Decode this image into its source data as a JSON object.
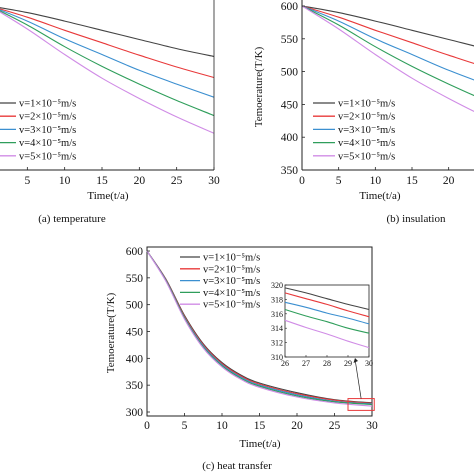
{
  "chart_data": [
    {
      "type": "line",
      "caption": "(a) temperature",
      "xlabel": "Time(t/a)",
      "ylabel": "",
      "xticks": [
        "5",
        "10",
        "15",
        "20",
        "25",
        "30"
      ],
      "yticks": [],
      "xlim": [
        0,
        30
      ],
      "ylim": [
        350,
        600
      ],
      "legend_position": "left",
      "x": [
        0,
        5,
        10,
        15,
        20,
        25,
        30
      ],
      "series": [
        {
          "name": "v=1×10⁻⁵m/s",
          "color": "#444444",
          "values": [
            600,
            590,
            577,
            563,
            549,
            535,
            523
          ]
        },
        {
          "name": "v=2×10⁻⁵m/s",
          "color": "#e8393a",
          "values": [
            600,
            583,
            563,
            544,
            525,
            507,
            491
          ]
        },
        {
          "name": "v=3×10⁻⁵m/s",
          "color": "#3b8fd0",
          "values": [
            600,
            577,
            550,
            526,
            502,
            481,
            461
          ]
        },
        {
          "name": "v=4×10⁻⁵m/s",
          "color": "#2f9e5b",
          "values": [
            600,
            571,
            538,
            508,
            481,
            456,
            433
          ]
        },
        {
          "name": "v=5×10⁻⁵m/s",
          "color": "#d08ce6",
          "values": [
            600,
            565,
            526,
            490,
            459,
            431,
            406
          ]
        }
      ]
    },
    {
      "type": "line",
      "caption": "(b) insulation",
      "xlabel": "Time(t/a)",
      "ylabel": "Temoerature(T/K)",
      "xticks": [
        "0",
        "5",
        "10",
        "15",
        "20"
      ],
      "yticks": [
        "350",
        "400",
        "450",
        "500",
        "550",
        "600"
      ],
      "xlim": [
        0,
        30
      ],
      "ylim": [
        350,
        600
      ],
      "legend_position": "bottom-left",
      "x": [
        0,
        5,
        10,
        15,
        20,
        25,
        30
      ],
      "series": [
        {
          "name": "v=1×10⁻⁵m/s",
          "color": "#444444",
          "values": [
            600,
            590,
            577,
            563,
            549,
            535,
            523
          ]
        },
        {
          "name": "v=2×10⁻⁵m/s",
          "color": "#e8393a",
          "values": [
            600,
            583,
            563,
            544,
            525,
            507,
            491
          ]
        },
        {
          "name": "v=3×10⁻⁵m/s",
          "color": "#3b8fd0",
          "values": [
            600,
            577,
            550,
            526,
            502,
            481,
            461
          ]
        },
        {
          "name": "v=4×10⁻⁵m/s",
          "color": "#2f9e5b",
          "values": [
            600,
            571,
            538,
            508,
            481,
            456,
            433
          ]
        },
        {
          "name": "v=5×10⁻⁵m/s",
          "color": "#d08ce6",
          "values": [
            600,
            565,
            526,
            490,
            459,
            431,
            406
          ]
        }
      ]
    },
    {
      "type": "line",
      "caption": "(c) heat transfer",
      "xlabel": "Time(t/a)",
      "ylabel": "Temoerature(T/K)",
      "xticks": [
        "0",
        "5",
        "10",
        "15",
        "20",
        "25",
        "30"
      ],
      "yticks": [
        "300",
        "350",
        "400",
        "450",
        "500",
        "550",
        "600"
      ],
      "xlim": [
        0,
        30
      ],
      "ylim": [
        300,
        600
      ],
      "legend_position": "top-right",
      "x": [
        0,
        2.5,
        5,
        7.5,
        10,
        12.5,
        15,
        20,
        25,
        30
      ],
      "series": [
        {
          "name": "v=1×10⁻⁵m/s",
          "color": "#444444",
          "values": [
            600,
            548,
            480,
            427,
            392,
            369,
            354,
            336,
            323,
            317
          ]
        },
        {
          "name": "v=2×10⁻⁵m/s",
          "color": "#e8393a",
          "values": [
            600,
            547,
            478,
            425,
            390,
            367,
            352,
            334,
            322,
            316
          ]
        },
        {
          "name": "v=3×10⁻⁵m/s",
          "color": "#3b8fd0",
          "values": [
            600,
            546,
            476,
            423,
            388,
            365,
            350,
            332,
            320,
            315
          ]
        },
        {
          "name": "v=4×10⁻⁵m/s",
          "color": "#2f9e5b",
          "values": [
            600,
            545,
            475,
            421,
            386,
            363,
            348,
            330,
            319,
            314
          ]
        },
        {
          "name": "v=5×10⁻⁵m/s",
          "color": "#d08ce6",
          "values": [
            600,
            544,
            473,
            419,
            384,
            361,
            346,
            328,
            317,
            311
          ]
        }
      ],
      "inset": {
        "xlim": [
          26,
          30
        ],
        "ylim": [
          310,
          320
        ],
        "xticks": [
          "26",
          "27",
          "28",
          "29",
          "30"
        ],
        "yticks": [
          "310",
          "312",
          "314",
          "316",
          "318",
          "320"
        ],
        "x": [
          26,
          27,
          28,
          29,
          30
        ],
        "series": [
          {
            "name": "v=1×10⁻⁵m/s",
            "color": "#444444",
            "values": [
              319.6,
              318.9,
              318.1,
              317.3,
              316.6
            ]
          },
          {
            "name": "v=2×10⁻⁵m/s",
            "color": "#e8393a",
            "values": [
              318.9,
              318.1,
              317.3,
              316.4,
              315.6
            ]
          },
          {
            "name": "v=3×10⁻⁵m/s",
            "color": "#3b8fd0",
            "values": [
              317.6,
              316.9,
              316.1,
              315.4,
              314.6
            ]
          },
          {
            "name": "v=4×10⁻⁵m/s",
            "color": "#2f9e5b",
            "values": [
              316.6,
              315.7,
              314.9,
              314.0,
              313.3
            ]
          },
          {
            "name": "v=5×10⁻⁵m/s",
            "color": "#d08ce6",
            "values": [
              315.1,
              314.1,
              313.2,
              312.2,
              311.3
            ]
          }
        ]
      }
    }
  ]
}
